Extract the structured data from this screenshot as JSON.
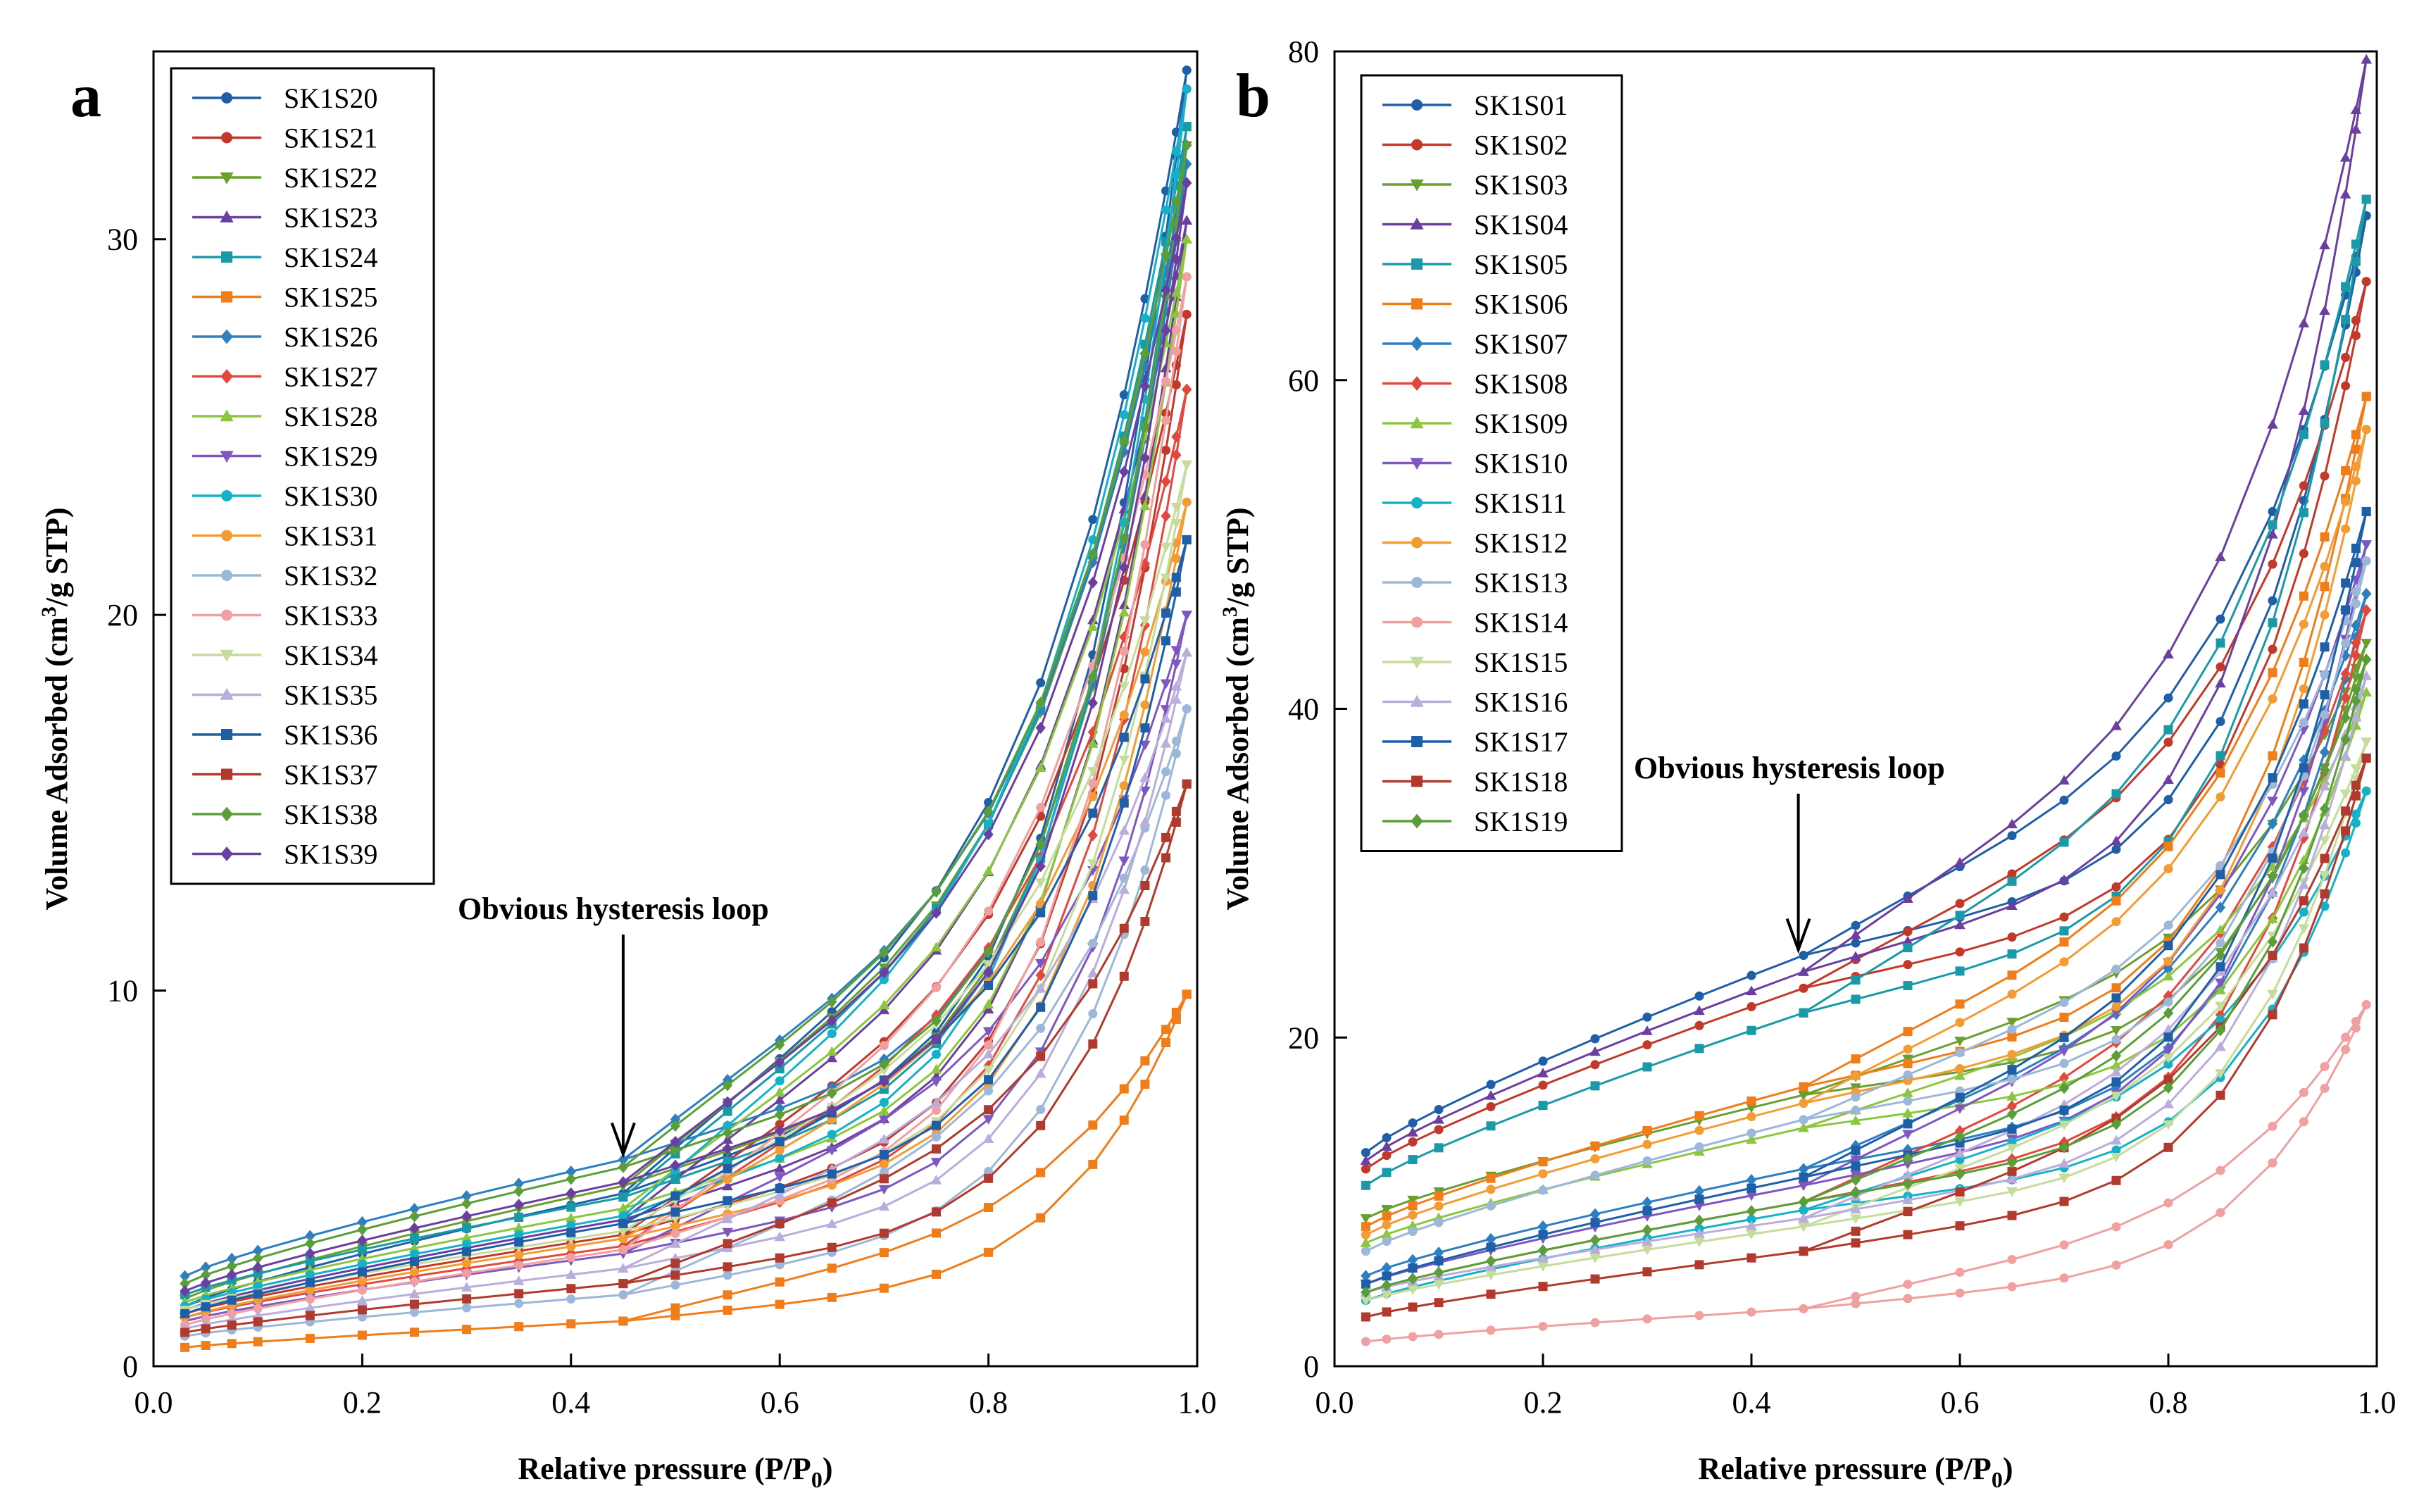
{
  "chart_data": [
    {
      "panel": "a",
      "type": "line",
      "xlabel": "Relative pressure (P/P0)",
      "ylabel": "Volume Adsorbed (cm3/g STP)",
      "xlim": [
        0,
        1
      ],
      "ylim": [
        0,
        35
      ],
      "xticks": [
        "0.0",
        "0.2",
        "0.4",
        "0.6",
        "0.8",
        "1.0"
      ],
      "yticks": [
        "0",
        "10",
        "20",
        "30"
      ],
      "legend_position": "top-left",
      "annotation": "Obvious hysteresis loop",
      "annotation_target": {
        "x": 0.45,
        "y": 5.5
      },
      "series": [
        {
          "name": "SK1S20",
          "color": "#1f5fa8",
          "marker": "circle",
          "y0": 1.6,
          "y45": 4.6,
          "yend": 34.5
        },
        {
          "name": "SK1S21",
          "color": "#c0392b",
          "marker": "circle",
          "y0": 1.4,
          "y45": 3.5,
          "yend": 28.0
        },
        {
          "name": "SK1S22",
          "color": "#6a9e2f",
          "marker": "triangle-down",
          "y0": 1.8,
          "y45": 4.8,
          "yend": 32.5
        },
        {
          "name": "SK1S23",
          "color": "#6b3fa0",
          "marker": "triangle-up",
          "y0": 1.5,
          "y45": 3.9,
          "yend": 30.5
        },
        {
          "name": "SK1S24",
          "color": "#1a9aa8",
          "marker": "square",
          "y0": 1.9,
          "y45": 4.5,
          "yend": 33.0
        },
        {
          "name": "SK1S25",
          "color": "#ef7d1a",
          "marker": "square",
          "y0": 0.5,
          "y45": 1.2,
          "yend": 9.9
        },
        {
          "name": "SK1S26",
          "color": "#2e7fc0",
          "marker": "diamond",
          "y0": 2.4,
          "y45": 5.5,
          "yend": 32.0
        },
        {
          "name": "SK1S27",
          "color": "#e2483d",
          "marker": "diamond",
          "y0": 1.3,
          "y45": 3.2,
          "yend": 26.0
        },
        {
          "name": "SK1S28",
          "color": "#8cc63f",
          "marker": "triangle-up",
          "y0": 1.7,
          "y45": 4.2,
          "yend": 30.0
        },
        {
          "name": "SK1S29",
          "color": "#7e57c2",
          "marker": "triangle-down",
          "y0": 1.2,
          "y45": 3.0,
          "yend": 20.0
        },
        {
          "name": "SK1S30",
          "color": "#17b1c7",
          "marker": "circle",
          "y0": 1.6,
          "y45": 4.0,
          "yend": 34.0
        },
        {
          "name": "SK1S31",
          "color": "#f39c33",
          "marker": "circle",
          "y0": 1.3,
          "y45": 3.4,
          "yend": 23.0
        },
        {
          "name": "SK1S32",
          "color": "#9db7d9",
          "marker": "circle",
          "y0": 0.8,
          "y45": 1.9,
          "yend": 17.5
        },
        {
          "name": "SK1S33",
          "color": "#f0a0a0",
          "marker": "circle",
          "y0": 1.1,
          "y45": 3.1,
          "yend": 29.0
        },
        {
          "name": "SK1S34",
          "color": "#c5dc9a",
          "marker": "triangle-down",
          "y0": 1.5,
          "y45": 3.6,
          "yend": 24.0
        },
        {
          "name": "SK1S35",
          "color": "#b9aedb",
          "marker": "triangle-up",
          "y0": 1.0,
          "y45": 2.6,
          "yend": 19.0
        },
        {
          "name": "SK1S36",
          "color": "#1f5fa8",
          "marker": "square",
          "y0": 1.4,
          "y45": 3.8,
          "yend": 22.0
        },
        {
          "name": "SK1S37",
          "color": "#b03a2e",
          "marker": "square",
          "y0": 0.9,
          "y45": 2.2,
          "yend": 15.5
        },
        {
          "name": "SK1S38",
          "color": "#5a9e3a",
          "marker": "diamond",
          "y0": 2.2,
          "y45": 5.3,
          "yend": 32.5
        },
        {
          "name": "SK1S39",
          "color": "#6b3fa0",
          "marker": "diamond",
          "y0": 2.0,
          "y45": 4.9,
          "yend": 31.5
        }
      ]
    },
    {
      "panel": "b",
      "type": "line",
      "xlabel": "Relative pressure (P/P0)",
      "ylabel": "Volume Adsorbed (cm3/g STP)",
      "xlim": [
        0,
        1
      ],
      "ylim": [
        0,
        80
      ],
      "xticks": [
        "0.0",
        "0.2",
        "0.4",
        "0.6",
        "0.8",
        "1.0"
      ],
      "yticks": [
        "0",
        "20",
        "40",
        "60",
        "80"
      ],
      "legend_position": "top-left",
      "annotation": "Obvious hysteresis loop",
      "annotation_target": {
        "x": 0.445,
        "y": 25
      },
      "series": [
        {
          "name": "SK1S01",
          "color": "#1f5fa8",
          "marker": "circle",
          "y0": 13.0,
          "y45": 25.0,
          "yend": 70.0
        },
        {
          "name": "SK1S02",
          "color": "#c0392b",
          "marker": "circle",
          "y0": 12.0,
          "y45": 23.0,
          "yend": 66.0
        },
        {
          "name": "SK1S03",
          "color": "#6a9e2f",
          "marker": "triangle-down",
          "y0": 9.0,
          "y45": 16.5,
          "yend": 44.0
        },
        {
          "name": "SK1S04",
          "color": "#6b3fa0",
          "marker": "triangle-up",
          "y0": 12.5,
          "y45": 24.0,
          "yend": 79.5
        },
        {
          "name": "SK1S05",
          "color": "#1a9aa8",
          "marker": "square",
          "y0": 11.0,
          "y45": 21.5,
          "yend": 71.0
        },
        {
          "name": "SK1S06",
          "color": "#ef7d1a",
          "marker": "square",
          "y0": 8.5,
          "y45": 17.0,
          "yend": 59.0
        },
        {
          "name": "SK1S07",
          "color": "#2e7fc0",
          "marker": "diamond",
          "y0": 5.5,
          "y45": 12.0,
          "yend": 47.0
        },
        {
          "name": "SK1S08",
          "color": "#e2483d",
          "marker": "diamond",
          "y0": 4.5,
          "y45": 10.0,
          "yend": 46.0
        },
        {
          "name": "SK1S09",
          "color": "#8cc63f",
          "marker": "triangle-up",
          "y0": 7.5,
          "y45": 14.5,
          "yend": 41.0
        },
        {
          "name": "SK1S10",
          "color": "#7e57c2",
          "marker": "triangle-down",
          "y0": 5.0,
          "y45": 11.0,
          "yend": 50.0
        },
        {
          "name": "SK1S11",
          "color": "#17b1c7",
          "marker": "circle",
          "y0": 4.0,
          "y45": 9.5,
          "yend": 35.0
        },
        {
          "name": "SK1S12",
          "color": "#f39c33",
          "marker": "circle",
          "y0": 8.0,
          "y45": 16.0,
          "yend": 57.0
        },
        {
          "name": "SK1S13",
          "color": "#9db7d9",
          "marker": "circle",
          "y0": 7.0,
          "y45": 15.0,
          "yend": 49.0
        },
        {
          "name": "SK1S14",
          "color": "#f0a0a0",
          "marker": "circle",
          "y0": 1.5,
          "y45": 3.5,
          "yend": 22.0
        },
        {
          "name": "SK1S15",
          "color": "#c5dc9a",
          "marker": "triangle-down",
          "y0": 4.0,
          "y45": 8.5,
          "yend": 38.0
        },
        {
          "name": "SK1S16",
          "color": "#b9aedb",
          "marker": "triangle-up",
          "y0": 4.5,
          "y45": 9.0,
          "yend": 42.0
        },
        {
          "name": "SK1S17",
          "color": "#1f5fa8",
          "marker": "square",
          "y0": 5.0,
          "y45": 11.5,
          "yend": 52.0
        },
        {
          "name": "SK1S18",
          "color": "#b03a2e",
          "marker": "square",
          "y0": 3.0,
          "y45": 7.0,
          "yend": 37.0
        },
        {
          "name": "SK1S19",
          "color": "#5a9e3a",
          "marker": "diamond",
          "y0": 4.5,
          "y45": 10.0,
          "yend": 43.0
        }
      ]
    }
  ]
}
